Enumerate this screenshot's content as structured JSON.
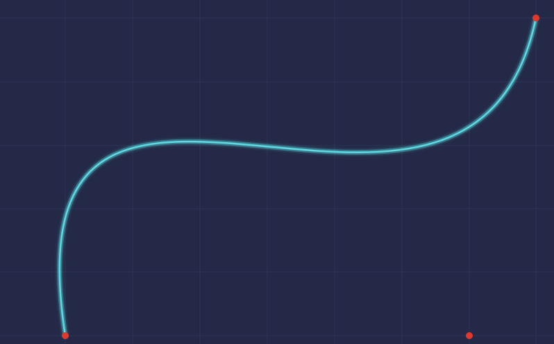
{
  "canvas": {
    "background": "#232946",
    "grid_color": "#2d3555"
  },
  "curve": {
    "type": "cubic-bezier",
    "stroke_color": "#5fd8df",
    "glow_color": "#3fb6c4"
  },
  "control_points": {
    "color": "#e0382c",
    "items": [
      {
        "role": "start-point"
      },
      {
        "role": "control-point-1"
      },
      {
        "role": "control-point-2"
      },
      {
        "role": "end-point"
      }
    ]
  }
}
